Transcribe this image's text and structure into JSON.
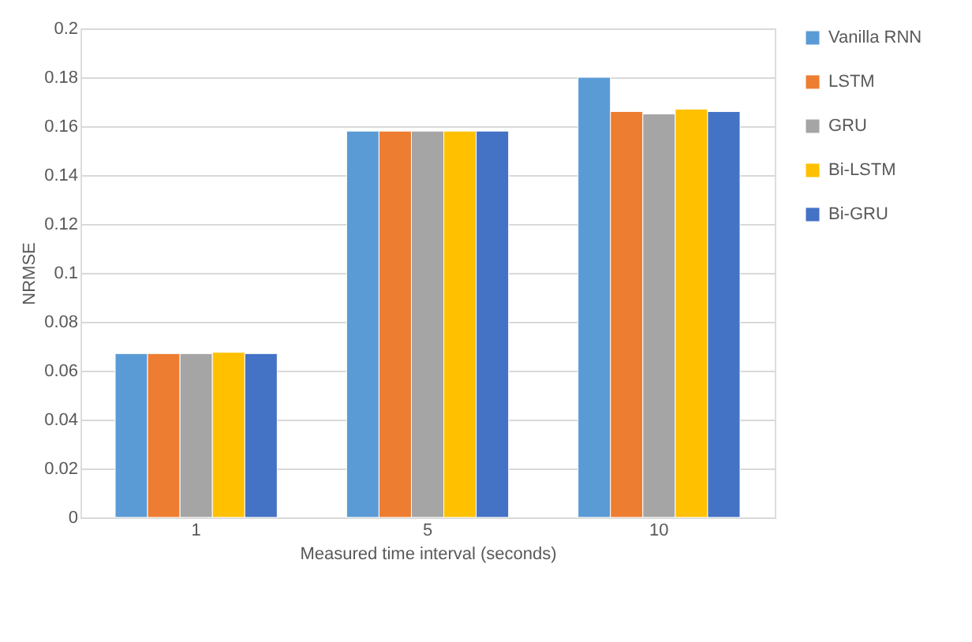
{
  "chart_data": {
    "type": "bar",
    "xlabel": "Measured time interval (seconds)",
    "ylabel": "NRMSE",
    "categories": [
      "1",
      "5",
      "10"
    ],
    "series": [
      {
        "name": "Vanilla RNN",
        "color": "#5b9bd5",
        "values": [
          0.067,
          0.158,
          0.18
        ]
      },
      {
        "name": "LSTM",
        "color": "#ed7d31",
        "values": [
          0.067,
          0.158,
          0.166
        ]
      },
      {
        "name": "GRU",
        "color": "#a5a5a5",
        "values": [
          0.067,
          0.158,
          0.165
        ]
      },
      {
        "name": "Bi-LSTM",
        "color": "#ffc000",
        "values": [
          0.0675,
          0.158,
          0.167
        ]
      },
      {
        "name": "Bi-GRU",
        "color": "#4472c4",
        "values": [
          0.067,
          0.158,
          0.166
        ]
      }
    ],
    "ylim": [
      0,
      0.2
    ],
    "yticks": [
      0,
      0.02,
      0.04,
      0.06,
      0.08,
      0.1,
      0.12,
      0.14,
      0.16,
      0.18,
      0.2
    ],
    "grid": "y",
    "legend": "right"
  }
}
